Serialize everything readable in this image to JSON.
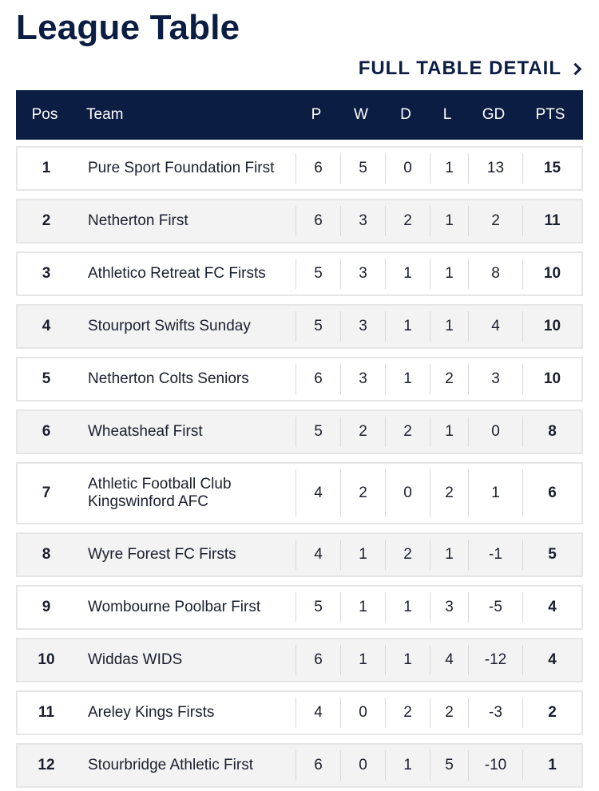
{
  "title": "League Table",
  "link": {
    "label": "FULL TABLE DETAIL",
    "icon": "chevron-right-icon"
  },
  "columns": [
    "Pos",
    "Team",
    "P",
    "W",
    "D",
    "L",
    "GD",
    "PTS"
  ],
  "rows": [
    {
      "pos": "1",
      "team": "Pure Sport Foundation First",
      "p": "6",
      "w": "5",
      "d": "0",
      "l": "1",
      "gd": "13",
      "pts": "15"
    },
    {
      "pos": "2",
      "team": "Netherton First",
      "p": "6",
      "w": "3",
      "d": "2",
      "l": "1",
      "gd": "2",
      "pts": "11"
    },
    {
      "pos": "3",
      "team": "Athletico Retreat FC Firsts",
      "p": "5",
      "w": "3",
      "d": "1",
      "l": "1",
      "gd": "8",
      "pts": "10"
    },
    {
      "pos": "4",
      "team": "Stourport Swifts Sunday",
      "p": "5",
      "w": "3",
      "d": "1",
      "l": "1",
      "gd": "4",
      "pts": "10"
    },
    {
      "pos": "5",
      "team": "Netherton Colts Seniors",
      "p": "6",
      "w": "3",
      "d": "1",
      "l": "2",
      "gd": "3",
      "pts": "10"
    },
    {
      "pos": "6",
      "team": "Wheatsheaf First",
      "p": "5",
      "w": "2",
      "d": "2",
      "l": "1",
      "gd": "0",
      "pts": "8"
    },
    {
      "pos": "7",
      "team": "Athletic Football Club Kingswinford AFC",
      "p": "4",
      "w": "2",
      "d": "0",
      "l": "2",
      "gd": "1",
      "pts": "6"
    },
    {
      "pos": "8",
      "team": "Wyre Forest FC Firsts",
      "p": "4",
      "w": "1",
      "d": "2",
      "l": "1",
      "gd": "-1",
      "pts": "5"
    },
    {
      "pos": "9",
      "team": "Wombourne Poolbar First",
      "p": "5",
      "w": "1",
      "d": "1",
      "l": "3",
      "gd": "-5",
      "pts": "4"
    },
    {
      "pos": "10",
      "team": "Widdas WIDS",
      "p": "6",
      "w": "1",
      "d": "1",
      "l": "4",
      "gd": "-12",
      "pts": "4"
    },
    {
      "pos": "11",
      "team": "Areley Kings Firsts",
      "p": "4",
      "w": "0",
      "d": "2",
      "l": "2",
      "gd": "-3",
      "pts": "2"
    },
    {
      "pos": "12",
      "team": "Stourbridge Athletic First",
      "p": "6",
      "w": "0",
      "d": "1",
      "l": "5",
      "gd": "-10",
      "pts": "1"
    }
  ],
  "colors": {
    "navy": "#0b1d42",
    "row_alt": "#f3f3f3",
    "border": "#e6e6e6"
  }
}
